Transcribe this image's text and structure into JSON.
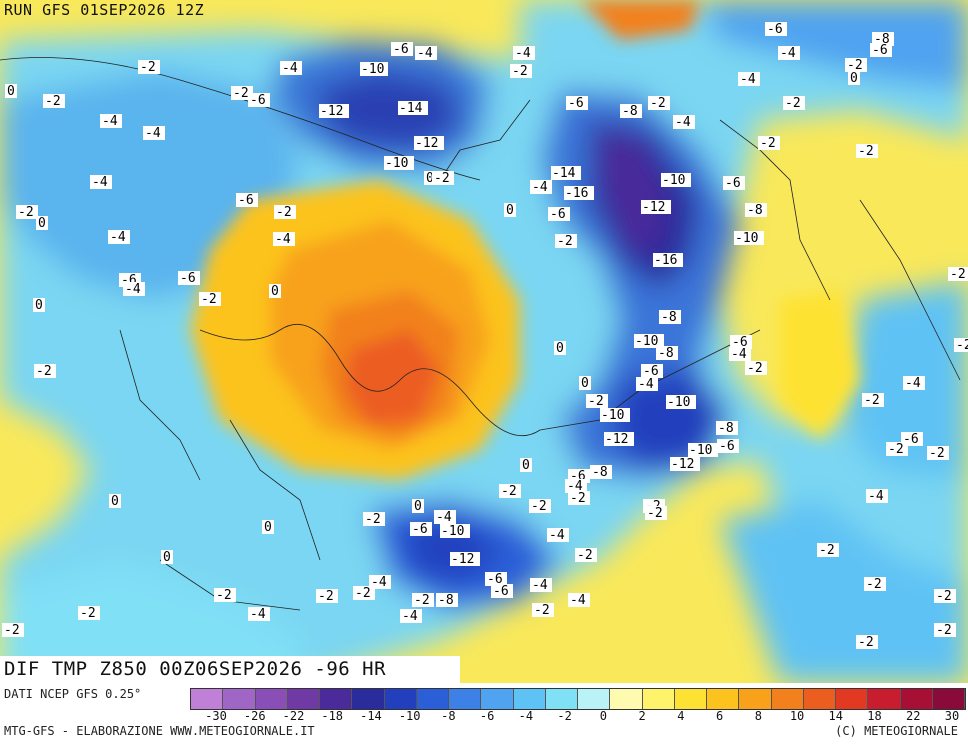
{
  "header": {
    "run_label": "RUN GFS 01SEP2026 12Z"
  },
  "map": {
    "caption": "DIF TMP Z850 00Z06SEP2026 -96 HR",
    "contour_labels": [
      "0",
      "-2",
      "-4",
      "-6",
      "-8",
      "-10",
      "-12",
      "-14",
      "-16"
    ]
  },
  "legend": {
    "source": "DATI NCEP GFS 0.25°",
    "credit": "MTG-GFS - ELABORAZIONE WWW.METEOGIORNALE.IT",
    "copyright": "(C) METEOGIORNALE",
    "ticks": [
      "-30",
      "-26",
      "-22",
      "-18",
      "-14",
      "-10",
      "-8",
      "-6",
      "-4",
      "-2",
      "0",
      "2",
      "4",
      "6",
      "8",
      "10",
      "14",
      "18",
      "22",
      "30"
    ],
    "colors": [
      "#c080d8",
      "#a066c6",
      "#8a4fb6",
      "#6f3aa4",
      "#4b2a9a",
      "#2a2c9c",
      "#2240bd",
      "#2b5fd8",
      "#3d80e6",
      "#4fa3f0",
      "#5fc2f4",
      "#80e0f6",
      "#b9f2f7",
      "#fefbb0",
      "#fef36a",
      "#fee233",
      "#fcc31e",
      "#f8a21b",
      "#f2811d",
      "#ec5d20",
      "#e23a22",
      "#c81d2e",
      "#a80f35",
      "#8a0a3a"
    ]
  }
}
